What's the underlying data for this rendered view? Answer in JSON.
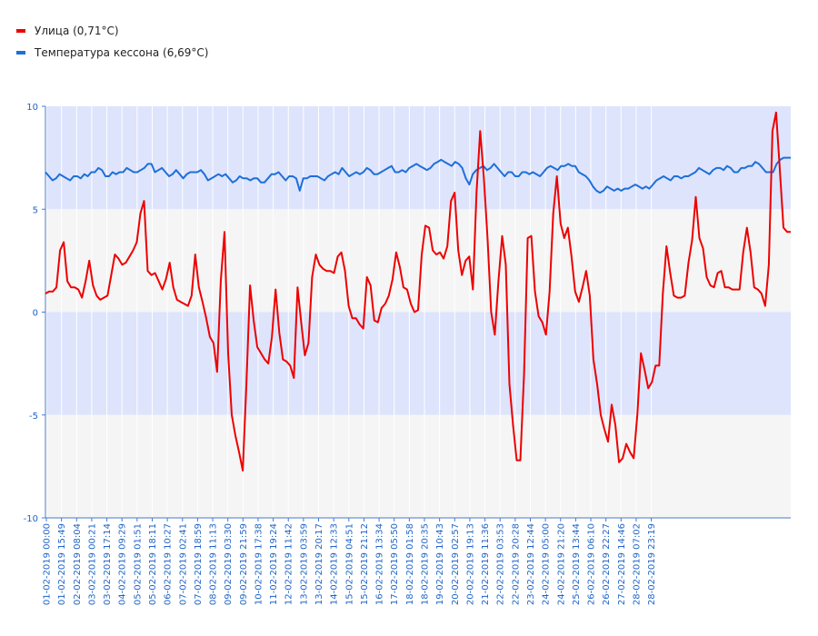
{
  "chart_data": {
    "type": "line",
    "ylim": [
      -10,
      10
    ],
    "yticks": [
      10,
      5,
      0,
      -5,
      -10
    ],
    "band_colors": [
      "#dde4fc",
      "#f5f5f5"
    ],
    "grid": true,
    "legend_position": "top-left",
    "x_labels": [
      "01-02-2019 00:00",
      "01-02-2019 15:49",
      "02-02-2019 08:04",
      "03-02-2019 00:21",
      "03-02-2019 17:14",
      "04-02-2019 09:29",
      "05-02-2019 01:51",
      "05-02-2019 18:11",
      "06-02-2019 10:27",
      "07-02-2019 02:41",
      "07-02-2019 18:59",
      "08-02-2019 11:13",
      "09-02-2019 03:30",
      "09-02-2019 21:59",
      "10-02-2019 17:38",
      "11-02-2019 19:24",
      "12-02-2019 11:42",
      "13-02-2019 03:59",
      "13-02-2019 20:17",
      "14-02-2019 12:33",
      "15-02-2019 04:51",
      "15-02-2019 21:12",
      "16-02-2019 13:34",
      "17-02-2019 05:50",
      "18-02-2019 01:58",
      "18-02-2019 20:35",
      "19-02-2019 10:43",
      "20-02-2019 02:57",
      "20-02-2019 19:13",
      "21-02-2019 11:36",
      "22-02-2019 03:53",
      "22-02-2019 20:28",
      "23-02-2019 12:44",
      "24-02-2019 05:00",
      "24-02-2019 21:20",
      "25-02-2019 13:44",
      "26-02-2019 06:10",
      "26-02-2019 22:27",
      "27-02-2019 14:46",
      "28-02-2019 07:02",
      "28-02-2019 23:19"
    ],
    "series": [
      {
        "name": "Улица (0,71°C)",
        "color": "#ee0000",
        "values": [
          0.9,
          1.0,
          1.0,
          1.2,
          3.0,
          3.4,
          1.5,
          1.2,
          1.2,
          1.1,
          0.7,
          1.5,
          2.5,
          1.3,
          0.8,
          0.6,
          0.7,
          0.8,
          1.8,
          2.8,
          2.6,
          2.3,
          2.4,
          2.7,
          3.0,
          3.4,
          4.8,
          5.4,
          2.0,
          1.8,
          1.9,
          1.5,
          1.1,
          1.6,
          2.4,
          1.2,
          0.6,
          0.5,
          0.4,
          0.3,
          0.8,
          2.8,
          1.2,
          0.5,
          -0.3,
          -1.2,
          -1.5,
          -2.9,
          1.5,
          3.9,
          -2.0,
          -5.0,
          -6.0,
          -6.8,
          -7.7,
          -3.5,
          1.3,
          -0.4,
          -1.7,
          -2.0,
          -2.3,
          -2.5,
          -1.2,
          1.1,
          -1.0,
          -2.3,
          -2.4,
          -2.6,
          -3.2,
          1.2,
          -0.5,
          -2.1,
          -1.5,
          1.7,
          2.8,
          2.3,
          2.1,
          2.0,
          2.0,
          1.9,
          2.7,
          2.9,
          2.0,
          0.3,
          -0.3,
          -0.3,
          -0.6,
          -0.8,
          1.7,
          1.3,
          -0.4,
          -0.5,
          0.2,
          0.4,
          0.8,
          1.6,
          2.9,
          2.2,
          1.2,
          1.1,
          0.4,
          0.0,
          0.1,
          2.8,
          4.2,
          4.1,
          3.0,
          2.8,
          2.9,
          2.6,
          3.2,
          5.4,
          5.8,
          3.0,
          1.8,
          2.5,
          2.7,
          1.1,
          5.8,
          8.8,
          6.5,
          3.6,
          0.0,
          -1.1,
          1.5,
          3.7,
          2.3,
          -3.5,
          -5.5,
          -7.2,
          -7.2,
          -3.0,
          3.6,
          3.7,
          1.0,
          -0.2,
          -0.5,
          -1.1,
          1.0,
          4.8,
          6.6,
          4.3,
          3.6,
          4.1,
          2.7,
          1.0,
          0.5,
          1.2,
          2.0,
          0.8,
          -2.3,
          -3.5,
          -5.0,
          -5.7,
          -6.3,
          -4.5,
          -5.5,
          -7.3,
          -7.1,
          -6.4,
          -6.8,
          -7.1,
          -5.0,
          -2.0,
          -2.8,
          -3.7,
          -3.4,
          -2.6,
          -2.6,
          0.9,
          3.2,
          1.9,
          0.8,
          0.7,
          0.7,
          0.8,
          2.4,
          3.5,
          5.6,
          3.6,
          3.1,
          1.7,
          1.3,
          1.2,
          1.9,
          2.0,
          1.2,
          1.2,
          1.1,
          1.1,
          1.1,
          2.9,
          4.1,
          2.9,
          1.2,
          1.1,
          0.9,
          0.3,
          2.3,
          8.8,
          9.7,
          7.0,
          4.1,
          3.9,
          3.9
        ]
      },
      {
        "name": "Температура кессона (6,69°C)",
        "color": "#1e6fd8",
        "values": [
          6.8,
          6.6,
          6.4,
          6.5,
          6.7,
          6.6,
          6.5,
          6.4,
          6.6,
          6.6,
          6.5,
          6.7,
          6.6,
          6.8,
          6.8,
          7.0,
          6.9,
          6.6,
          6.6,
          6.8,
          6.7,
          6.8,
          6.8,
          7.0,
          6.9,
          6.8,
          6.8,
          6.9,
          7.0,
          7.2,
          7.2,
          6.8,
          6.9,
          7.0,
          6.8,
          6.6,
          6.7,
          6.9,
          6.7,
          6.5,
          6.7,
          6.8,
          6.8,
          6.8,
          6.9,
          6.7,
          6.4,
          6.5,
          6.6,
          6.7,
          6.6,
          6.7,
          6.5,
          6.3,
          6.4,
          6.6,
          6.5,
          6.5,
          6.4,
          6.5,
          6.5,
          6.3,
          6.3,
          6.5,
          6.7,
          6.7,
          6.8,
          6.6,
          6.4,
          6.6,
          6.6,
          6.5,
          5.9,
          6.5,
          6.5,
          6.6,
          6.6,
          6.6,
          6.5,
          6.4,
          6.6,
          6.7,
          6.8,
          6.7,
          7.0,
          6.8,
          6.6,
          6.7,
          6.8,
          6.7,
          6.8,
          7.0,
          6.9,
          6.7,
          6.7,
          6.8,
          6.9,
          7.0,
          7.1,
          6.8,
          6.8,
          6.9,
          6.8,
          7.0,
          7.1,
          7.2,
          7.1,
          7.0,
          6.9,
          7.0,
          7.2,
          7.3,
          7.4,
          7.3,
          7.2,
          7.1,
          7.3,
          7.2,
          7.0,
          6.5,
          6.2,
          6.7,
          6.9,
          7.0,
          7.1,
          6.9,
          7.0,
          7.2,
          7.0,
          6.8,
          6.6,
          6.8,
          6.8,
          6.6,
          6.6,
          6.8,
          6.8,
          6.7,
          6.8,
          6.7,
          6.6,
          6.8,
          7.0,
          7.1,
          7.0,
          6.9,
          7.1,
          7.1,
          7.2,
          7.1,
          7.1,
          6.8,
          6.7,
          6.6,
          6.4,
          6.1,
          5.9,
          5.8,
          5.9,
          6.1,
          6.0,
          5.9,
          6.0,
          5.9,
          6.0,
          6.0,
          6.1,
          6.2,
          6.1,
          6.0,
          6.1,
          6.0,
          6.2,
          6.4,
          6.5,
          6.6,
          6.5,
          6.4,
          6.6,
          6.6,
          6.5,
          6.6,
          6.6,
          6.7,
          6.8,
          7.0,
          6.9,
          6.8,
          6.7,
          6.9,
          7.0,
          7.0,
          6.9,
          7.1,
          7.0,
          6.8,
          6.8,
          7.0,
          7.0,
          7.1,
          7.1,
          7.3,
          7.2,
          7.0,
          6.8,
          6.8,
          6.8,
          7.2,
          7.4,
          7.5,
          7.5,
          7.5
        ]
      }
    ]
  }
}
